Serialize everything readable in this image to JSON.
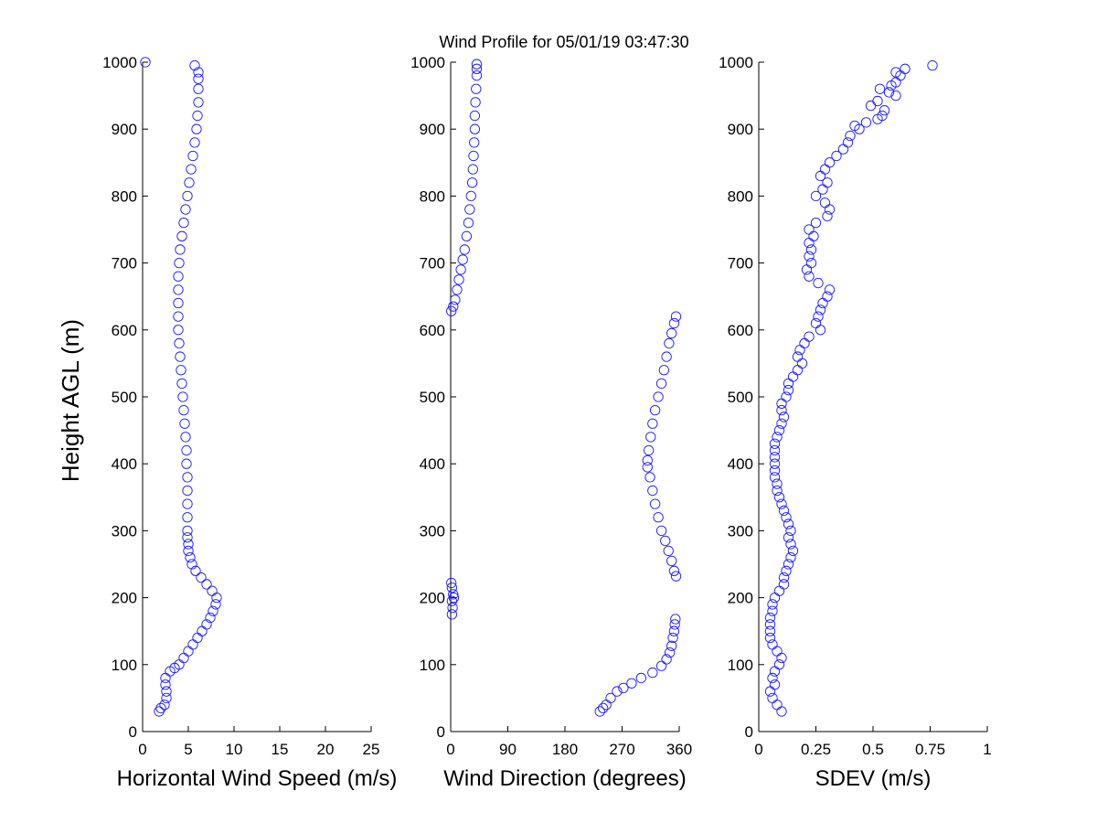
{
  "chart_data": {
    "title": "Wind Profile for  05/01/19 03:47:30",
    "ylabel": "Height AGL (m)",
    "ylim": [
      0,
      1000
    ],
    "yticks": [
      "0",
      "100",
      "200",
      "300",
      "400",
      "500",
      "600",
      "700",
      "800",
      "900",
      "1000"
    ],
    "marker_color": "#1a1aff",
    "panels": [
      {
        "id": "speed",
        "type": "scatter",
        "xlabel": "Horizontal Wind Speed (m/s)",
        "xlim": [
          0,
          25
        ],
        "xticks": [
          0,
          5,
          10,
          15,
          20,
          25
        ],
        "xtick_labels": [
          "0",
          "5",
          "10",
          "15",
          "20",
          "25"
        ],
        "points": [
          [
            1.8,
            30
          ],
          [
            2.0,
            35
          ],
          [
            2.4,
            40
          ],
          [
            2.6,
            50
          ],
          [
            2.6,
            60
          ],
          [
            2.5,
            70
          ],
          [
            2.5,
            80
          ],
          [
            3.0,
            90
          ],
          [
            3.5,
            95
          ],
          [
            4.0,
            100
          ],
          [
            4.5,
            110
          ],
          [
            5.0,
            120
          ],
          [
            5.5,
            130
          ],
          [
            6.0,
            140
          ],
          [
            6.5,
            150
          ],
          [
            7.0,
            160
          ],
          [
            7.4,
            170
          ],
          [
            7.7,
            180
          ],
          [
            8.0,
            190
          ],
          [
            8.1,
            200
          ],
          [
            7.6,
            210
          ],
          [
            7.0,
            220
          ],
          [
            6.4,
            230
          ],
          [
            5.8,
            240
          ],
          [
            5.4,
            250
          ],
          [
            5.2,
            260
          ],
          [
            5.0,
            270
          ],
          [
            5.0,
            280
          ],
          [
            4.9,
            290
          ],
          [
            4.9,
            300
          ],
          [
            4.9,
            320
          ],
          [
            4.9,
            340
          ],
          [
            4.9,
            360
          ],
          [
            4.9,
            380
          ],
          [
            4.8,
            400
          ],
          [
            4.8,
            420
          ],
          [
            4.7,
            440
          ],
          [
            4.6,
            460
          ],
          [
            4.5,
            480
          ],
          [
            4.4,
            500
          ],
          [
            4.3,
            520
          ],
          [
            4.2,
            540
          ],
          [
            4.1,
            560
          ],
          [
            4.0,
            580
          ],
          [
            3.9,
            600
          ],
          [
            3.9,
            620
          ],
          [
            3.9,
            640
          ],
          [
            3.9,
            660
          ],
          [
            3.9,
            680
          ],
          [
            4.0,
            700
          ],
          [
            4.1,
            720
          ],
          [
            4.3,
            740
          ],
          [
            4.5,
            760
          ],
          [
            4.7,
            780
          ],
          [
            4.9,
            800
          ],
          [
            5.1,
            820
          ],
          [
            5.3,
            840
          ],
          [
            5.5,
            860
          ],
          [
            5.7,
            880
          ],
          [
            5.9,
            900
          ],
          [
            6.0,
            920
          ],
          [
            6.1,
            940
          ],
          [
            6.1,
            960
          ],
          [
            6.1,
            975
          ],
          [
            6.1,
            985
          ],
          [
            5.7,
            995
          ],
          [
            0.3,
            1000
          ]
        ]
      },
      {
        "id": "direction",
        "type": "scatter",
        "xlabel": "Wind Direction (degrees)",
        "xlim": [
          0,
          360
        ],
        "xticks": [
          0,
          90,
          180,
          270,
          360
        ],
        "xtick_labels": [
          "0",
          "90",
          "180",
          "270",
          "360"
        ],
        "points": [
          [
            235,
            30
          ],
          [
            240,
            35
          ],
          [
            245,
            40
          ],
          [
            252,
            50
          ],
          [
            262,
            60
          ],
          [
            272,
            65
          ],
          [
            285,
            72
          ],
          [
            300,
            80
          ],
          [
            318,
            88
          ],
          [
            332,
            98
          ],
          [
            340,
            108
          ],
          [
            345,
            118
          ],
          [
            348,
            128
          ],
          [
            350,
            140
          ],
          [
            352,
            150
          ],
          [
            353,
            160
          ],
          [
            354,
            168
          ],
          [
            2,
            175
          ],
          [
            3,
            185
          ],
          [
            2,
            195
          ],
          [
            5,
            200
          ],
          [
            4,
            205
          ],
          [
            2,
            215
          ],
          [
            1,
            222
          ],
          [
            355,
            232
          ],
          [
            352,
            240
          ],
          [
            348,
            255
          ],
          [
            343,
            270
          ],
          [
            338,
            285
          ],
          [
            332,
            300
          ],
          [
            327,
            320
          ],
          [
            322,
            340
          ],
          [
            318,
            360
          ],
          [
            314,
            380
          ],
          [
            310,
            395
          ],
          [
            310,
            405
          ],
          [
            312,
            420
          ],
          [
            315,
            440
          ],
          [
            318,
            460
          ],
          [
            322,
            480
          ],
          [
            327,
            500
          ],
          [
            332,
            520
          ],
          [
            336,
            540
          ],
          [
            340,
            560
          ],
          [
            344,
            580
          ],
          [
            348,
            595
          ],
          [
            352,
            610
          ],
          [
            355,
            620
          ],
          [
            1,
            628
          ],
          [
            4,
            635
          ],
          [
            7,
            645
          ],
          [
            10,
            660
          ],
          [
            13,
            675
          ],
          [
            16,
            690
          ],
          [
            19,
            705
          ],
          [
            22,
            720
          ],
          [
            25,
            740
          ],
          [
            28,
            760
          ],
          [
            30,
            780
          ],
          [
            32,
            800
          ],
          [
            34,
            820
          ],
          [
            35,
            840
          ],
          [
            36,
            860
          ],
          [
            37,
            880
          ],
          [
            38,
            900
          ],
          [
            38,
            920
          ],
          [
            39,
            940
          ],
          [
            40,
            960
          ],
          [
            41,
            980
          ],
          [
            41,
            990
          ],
          [
            41,
            997
          ]
        ]
      },
      {
        "id": "sdev",
        "type": "scatter",
        "xlabel": "SDEV  (m/s)",
        "xlim": [
          0,
          1
        ],
        "xticks": [
          0,
          0.25,
          0.5,
          0.75,
          1
        ],
        "xtick_labels": [
          "0",
          "0.25",
          "0.5",
          "0.75",
          "1"
        ],
        "points": [
          [
            0.1,
            30
          ],
          [
            0.08,
            40
          ],
          [
            0.06,
            50
          ],
          [
            0.05,
            60
          ],
          [
            0.07,
            70
          ],
          [
            0.06,
            80
          ],
          [
            0.07,
            90
          ],
          [
            0.09,
            100
          ],
          [
            0.1,
            110
          ],
          [
            0.08,
            120
          ],
          [
            0.06,
            130
          ],
          [
            0.05,
            140
          ],
          [
            0.05,
            150
          ],
          [
            0.05,
            160
          ],
          [
            0.05,
            170
          ],
          [
            0.06,
            180
          ],
          [
            0.06,
            190
          ],
          [
            0.07,
            200
          ],
          [
            0.09,
            210
          ],
          [
            0.11,
            220
          ],
          [
            0.11,
            230
          ],
          [
            0.12,
            240
          ],
          [
            0.13,
            250
          ],
          [
            0.14,
            260
          ],
          [
            0.15,
            270
          ],
          [
            0.14,
            280
          ],
          [
            0.13,
            290
          ],
          [
            0.14,
            300
          ],
          [
            0.13,
            310
          ],
          [
            0.12,
            320
          ],
          [
            0.11,
            330
          ],
          [
            0.1,
            340
          ],
          [
            0.09,
            350
          ],
          [
            0.08,
            360
          ],
          [
            0.08,
            370
          ],
          [
            0.07,
            380
          ],
          [
            0.07,
            390
          ],
          [
            0.07,
            400
          ],
          [
            0.07,
            410
          ],
          [
            0.07,
            420
          ],
          [
            0.07,
            430
          ],
          [
            0.08,
            440
          ],
          [
            0.09,
            450
          ],
          [
            0.1,
            460
          ],
          [
            0.11,
            470
          ],
          [
            0.1,
            480
          ],
          [
            0.1,
            490
          ],
          [
            0.12,
            500
          ],
          [
            0.13,
            510
          ],
          [
            0.13,
            520
          ],
          [
            0.15,
            530
          ],
          [
            0.17,
            540
          ],
          [
            0.19,
            550
          ],
          [
            0.17,
            560
          ],
          [
            0.18,
            570
          ],
          [
            0.2,
            580
          ],
          [
            0.22,
            590
          ],
          [
            0.27,
            600
          ],
          [
            0.25,
            610
          ],
          [
            0.26,
            620
          ],
          [
            0.27,
            630
          ],
          [
            0.28,
            640
          ],
          [
            0.3,
            650
          ],
          [
            0.31,
            660
          ],
          [
            0.26,
            670
          ],
          [
            0.22,
            680
          ],
          [
            0.21,
            690
          ],
          [
            0.23,
            700
          ],
          [
            0.22,
            710
          ],
          [
            0.23,
            720
          ],
          [
            0.22,
            730
          ],
          [
            0.24,
            740
          ],
          [
            0.22,
            750
          ],
          [
            0.25,
            760
          ],
          [
            0.3,
            770
          ],
          [
            0.31,
            780
          ],
          [
            0.29,
            790
          ],
          [
            0.25,
            800
          ],
          [
            0.28,
            810
          ],
          [
            0.3,
            820
          ],
          [
            0.27,
            830
          ],
          [
            0.29,
            840
          ],
          [
            0.31,
            850
          ],
          [
            0.34,
            860
          ],
          [
            0.37,
            870
          ],
          [
            0.39,
            880
          ],
          [
            0.4,
            890
          ],
          [
            0.44,
            900
          ],
          [
            0.42,
            905
          ],
          [
            0.47,
            910
          ],
          [
            0.52,
            915
          ],
          [
            0.54,
            920
          ],
          [
            0.55,
            928
          ],
          [
            0.49,
            935
          ],
          [
            0.52,
            942
          ],
          [
            0.6,
            950
          ],
          [
            0.57,
            955
          ],
          [
            0.53,
            960
          ],
          [
            0.58,
            965
          ],
          [
            0.6,
            970
          ],
          [
            0.62,
            980
          ],
          [
            0.6,
            985
          ],
          [
            0.64,
            990
          ],
          [
            0.76,
            995
          ]
        ]
      }
    ]
  }
}
